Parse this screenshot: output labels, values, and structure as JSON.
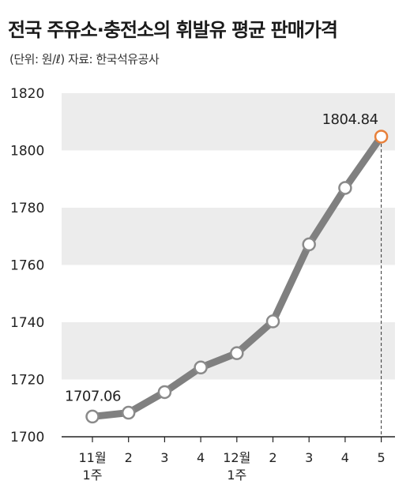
{
  "title": "전국 주유소·충전소의 휘발유 평균 판매가격",
  "subtitle": "(단위: 원/ℓ) 자료: 한국석유공사",
  "colors": {
    "line": "#808080",
    "marker_fill": "#ffffff",
    "marker_stroke": "#8a8a8a",
    "highlight": "#e8803a",
    "band": "#ececec"
  },
  "chart_data": {
    "type": "line",
    "title": "전국 주유소·충전소의 휘발유 평균 판매가격",
    "subtitle": "(단위: 원/ℓ) 자료: 한국석유공사",
    "categories": [
      "11월 1주",
      "2",
      "3",
      "4",
      "12월 1주",
      "2",
      "3",
      "4",
      "5"
    ],
    "x_tick_lines": [
      [
        "11월",
        "1주"
      ],
      [
        "2"
      ],
      [
        "3"
      ],
      [
        "4"
      ],
      [
        "12월",
        "1주"
      ],
      [
        "2"
      ],
      [
        "3"
      ],
      [
        "4"
      ],
      [
        "5"
      ]
    ],
    "values": [
      1707.06,
      1708.4,
      1715.6,
      1724.2,
      1729.2,
      1740.3,
      1767.2,
      1786.9,
      1804.84
    ],
    "ylim": [
      1700,
      1820
    ],
    "yticks": [
      1700,
      1720,
      1740,
      1760,
      1780,
      1800,
      1820
    ],
    "data_labels": [
      {
        "index": 0,
        "text": "1707.06"
      },
      {
        "index": 8,
        "text": "1804.84"
      }
    ],
    "highlight_index": 8,
    "grid": "alternating horizontal bands",
    "xlabel": "",
    "ylabel": ""
  }
}
